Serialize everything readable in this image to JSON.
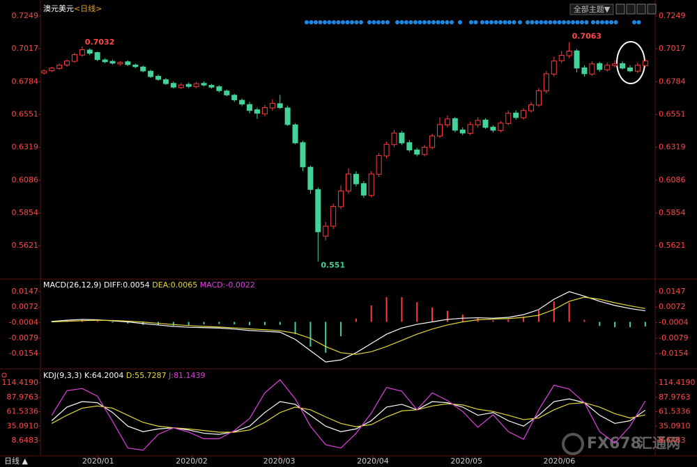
{
  "header": {
    "symbol": "澳元美元",
    "period": "<日线>",
    "theme_button": "全部主题▼"
  },
  "footer": {
    "period_label": "日线 ▲"
  },
  "watermark": {
    "brand": "FX678",
    "brand_cn": "汇通网"
  },
  "chart_data": [
    {
      "type": "candlestick",
      "xlim": [
        -0.3,
        80.3
      ],
      "ylim": [
        0.54,
        0.7323
      ],
      "yticks": [
        0.5621,
        0.5854,
        0.6086,
        0.6319,
        0.6551,
        0.6784,
        0.7017,
        0.7249
      ],
      "xticks": [
        {
          "value": 7.1,
          "label": "2020/01"
        },
        {
          "value": 19.4,
          "label": "2020/02"
        },
        {
          "value": 30.9,
          "label": "2020/03"
        },
        {
          "value": 43.2,
          "label": "2020/04"
        },
        {
          "value": 55.5,
          "label": "2020/05"
        },
        {
          "value": 67.7,
          "label": "2020/06"
        }
      ],
      "up_color": "#ff3c3c",
      "down_color": "#43d39a",
      "grid": false,
      "open": [
        0.6845,
        0.6862,
        0.6878,
        0.6902,
        0.6928,
        0.6972,
        0.7008,
        0.699,
        0.6938,
        0.6928,
        0.691,
        0.6925,
        0.6902,
        0.6888,
        0.6858,
        0.6822,
        0.6798,
        0.6772,
        0.6742,
        0.6765,
        0.6748,
        0.6772,
        0.6758,
        0.6748,
        0.6718,
        0.6688,
        0.6652,
        0.6622,
        0.6585,
        0.6555,
        0.6598,
        0.6628,
        0.6598,
        0.6478,
        0.6352,
        0.6178,
        0.602,
        0.569,
        0.576,
        0.5898,
        0.601,
        0.6128,
        0.6062,
        0.5978,
        0.6128,
        0.6258,
        0.6338,
        0.642,
        0.6352,
        0.63,
        0.6268,
        0.6318,
        0.6398,
        0.6478,
        0.6522,
        0.6442,
        0.6418,
        0.6478,
        0.6512,
        0.6462,
        0.6438,
        0.6488,
        0.6562,
        0.6528,
        0.6578,
        0.6618,
        0.6718,
        0.6838,
        0.6932,
        0.6968,
        0.7002,
        0.6882,
        0.6838,
        0.6912,
        0.6868,
        0.6898,
        0.6912,
        0.6882,
        0.6858,
        0.6898
      ],
      "high": [
        0.687,
        0.689,
        0.6912,
        0.6942,
        0.699,
        0.7032,
        0.702,
        0.6998,
        0.695,
        0.694,
        0.693,
        0.6935,
        0.6912,
        0.6898,
        0.6868,
        0.6835,
        0.681,
        0.6785,
        0.6775,
        0.6778,
        0.6782,
        0.6785,
        0.6768,
        0.6758,
        0.6728,
        0.6698,
        0.6665,
        0.664,
        0.66,
        0.6618,
        0.666,
        0.669,
        0.6615,
        0.649,
        0.6365,
        0.619,
        0.6035,
        0.579,
        0.592,
        0.605,
        0.617,
        0.615,
        0.608,
        0.615,
        0.628,
        0.636,
        0.644,
        0.6435,
        0.637,
        0.6315,
        0.6335,
        0.6415,
        0.653,
        0.6545,
        0.6535,
        0.646,
        0.65,
        0.653,
        0.6525,
        0.6475,
        0.6505,
        0.658,
        0.658,
        0.6595,
        0.664,
        0.674,
        0.686,
        0.696,
        0.7,
        0.7063,
        0.7015,
        0.69,
        0.693,
        0.6925,
        0.692,
        0.6935,
        0.693,
        0.69,
        0.6918,
        0.6945
      ],
      "low": [
        0.6835,
        0.6852,
        0.6868,
        0.689,
        0.6918,
        0.696,
        0.6972,
        0.6928,
        0.6915,
        0.6905,
        0.6898,
        0.6895,
        0.688,
        0.685,
        0.681,
        0.679,
        0.676,
        0.6735,
        0.6732,
        0.6738,
        0.6738,
        0.675,
        0.6735,
        0.6708,
        0.668,
        0.664,
        0.661,
        0.656,
        0.652,
        0.654,
        0.658,
        0.659,
        0.647,
        0.634,
        0.615,
        0.599,
        0.551,
        0.566,
        0.574,
        0.588,
        0.599,
        0.604,
        0.596,
        0.5965,
        0.611,
        0.624,
        0.632,
        0.6335,
        0.6285,
        0.6255,
        0.6255,
        0.6305,
        0.6385,
        0.646,
        0.6425,
        0.6405,
        0.6405,
        0.646,
        0.645,
        0.6425,
        0.6425,
        0.6475,
        0.6515,
        0.6515,
        0.6565,
        0.6605,
        0.67,
        0.682,
        0.6915,
        0.695,
        0.685,
        0.682,
        0.6825,
        0.6855,
        0.6855,
        0.6885,
        0.687,
        0.685,
        0.6845,
        0.6885
      ],
      "close": [
        0.686,
        0.688,
        0.69,
        0.693,
        0.6975,
        0.701,
        0.6985,
        0.694,
        0.6925,
        0.6915,
        0.692,
        0.6905,
        0.689,
        0.686,
        0.682,
        0.68,
        0.677,
        0.6745,
        0.676,
        0.675,
        0.677,
        0.676,
        0.6745,
        0.672,
        0.669,
        0.6655,
        0.6625,
        0.658,
        0.656,
        0.66,
        0.663,
        0.66,
        0.648,
        0.635,
        0.618,
        0.602,
        0.572,
        0.576,
        0.59,
        0.601,
        0.613,
        0.606,
        0.598,
        0.613,
        0.626,
        0.634,
        0.642,
        0.635,
        0.63,
        0.627,
        0.632,
        0.64,
        0.648,
        0.652,
        0.644,
        0.642,
        0.648,
        0.651,
        0.646,
        0.644,
        0.649,
        0.656,
        0.653,
        0.658,
        0.662,
        0.672,
        0.684,
        0.693,
        0.697,
        0.7,
        0.688,
        0.684,
        0.691,
        0.687,
        0.69,
        0.691,
        0.688,
        0.686,
        0.69,
        0.693
      ]
    },
    {
      "type": "macd",
      "label": "MACD(26,12,9)",
      "xlim": [
        -0.3,
        80.3
      ],
      "ylim": [
        -0.0215,
        0.0198
      ],
      "yticks": [
        -0.0154,
        -0.0079,
        -0.0004,
        0.0072,
        0.0147
      ],
      "x": [
        1,
        3,
        5,
        7,
        9,
        11,
        13,
        15,
        17,
        19,
        21,
        23,
        25,
        27,
        29,
        31,
        33,
        35,
        37,
        39,
        41,
        43,
        45,
        47,
        49,
        51,
        53,
        55,
        57,
        59,
        61,
        63,
        65,
        67,
        69,
        71,
        73,
        75,
        77,
        79
      ],
      "series": [
        {
          "name": "DIFF:",
          "color": "#ffffff",
          "values": [
            0.0002,
            0.0008,
            0.0012,
            0.001,
            0.0005,
            0.0,
            -0.0008,
            -0.0015,
            -0.0022,
            -0.0026,
            -0.0028,
            -0.003,
            -0.0035,
            -0.0042,
            -0.0046,
            -0.005,
            -0.0085,
            -0.014,
            -0.0195,
            -0.0185,
            -0.015,
            -0.0105,
            -0.006,
            -0.003,
            -0.0012,
            0.0,
            0.0012,
            0.0018,
            0.002,
            0.0018,
            0.0022,
            0.0035,
            0.006,
            0.011,
            0.0147,
            0.0125,
            0.01,
            0.008,
            0.0065,
            0.0054
          ]
        },
        {
          "name": "DEA:",
          "color": "#e6d93a",
          "values": [
            0.0,
            0.0003,
            0.0006,
            0.0008,
            0.0007,
            0.0004,
            -0.0001,
            -0.0007,
            -0.0013,
            -0.0018,
            -0.0022,
            -0.0025,
            -0.0029,
            -0.0034,
            -0.0038,
            -0.0043,
            -0.0055,
            -0.008,
            -0.012,
            -0.015,
            -0.0158,
            -0.0145,
            -0.012,
            -0.009,
            -0.006,
            -0.0035,
            -0.0015,
            0.0,
            0.001,
            0.0014,
            0.0016,
            0.0022,
            0.0032,
            0.006,
            0.01,
            0.012,
            0.011,
            0.0093,
            0.0078,
            0.0065
          ]
        },
        {
          "name": "MACD:",
          "color": "#e040e0",
          "up_color": "#ff3c3c",
          "down_color": "#43d39a",
          "values": [
            0.0004,
            0.001,
            0.0012,
            0.0004,
            -0.0004,
            -0.0008,
            -0.0014,
            -0.0016,
            -0.0018,
            -0.0016,
            -0.0012,
            -0.001,
            -0.0012,
            -0.0016,
            -0.0016,
            -0.0014,
            -0.006,
            -0.012,
            -0.015,
            -0.007,
            0.0016,
            0.008,
            0.012,
            0.012,
            0.0096,
            0.007,
            0.0054,
            0.0036,
            0.002,
            0.0008,
            0.0012,
            0.0026,
            0.0056,
            0.01,
            0.0094,
            0.001,
            -0.002,
            -0.0026,
            -0.0026,
            -0.0022
          ]
        }
      ]
    },
    {
      "type": "kdj",
      "label": "KDJ(9,3,3)",
      "xlim": [
        -0.3,
        80.3
      ],
      "ylim": [
        -16.8,
        132.3
      ],
      "yticks": [
        {
          "value": 8.6483,
          "label": "8.6483"
        },
        {
          "value": 35.091,
          "label": "35.0910"
        },
        {
          "value": 61.5336,
          "label": "61.5336"
        },
        {
          "value": 87.9763,
          "label": "87.9763"
        },
        {
          "value": 114.419,
          "label": "114.4190"
        }
      ],
      "x": [
        1,
        3,
        5,
        7,
        9,
        11,
        13,
        15,
        17,
        19,
        21,
        23,
        25,
        27,
        29,
        31,
        33,
        35,
        37,
        39,
        41,
        43,
        45,
        47,
        49,
        51,
        53,
        55,
        57,
        59,
        61,
        63,
        65,
        67,
        69,
        71,
        73,
        75,
        77,
        79
      ],
      "series": [
        {
          "name": "K:",
          "color": "#ffffff",
          "values": [
            45,
            70,
            80,
            78,
            60,
            35,
            25,
            30,
            32,
            28,
            22,
            20,
            25,
            35,
            60,
            80,
            75,
            55,
            35,
            25,
            30,
            45,
            70,
            75,
            65,
            80,
            78,
            70,
            55,
            60,
            45,
            35,
            55,
            80,
            85,
            78,
            55,
            40,
            45,
            64.2004
          ]
        },
        {
          "name": "D:",
          "color": "#e6d93a",
          "values": [
            40,
            55,
            68,
            72,
            68,
            55,
            42,
            35,
            32,
            30,
            27,
            24,
            24,
            28,
            42,
            60,
            70,
            65,
            52,
            40,
            34,
            38,
            52,
            63,
            65,
            72,
            76,
            74,
            66,
            62,
            55,
            47,
            50,
            65,
            76,
            78,
            70,
            58,
            50,
            55.7287
          ]
        },
        {
          "name": "J:",
          "color": "#e040e0",
          "values": [
            55,
            100,
            104,
            90,
            44,
            -5,
            -9,
            20,
            32,
            24,
            12,
            12,
            27,
            49,
            96,
            120,
            85,
            35,
            1,
            -5,
            22,
            59,
            106,
            99,
            65,
            96,
            82,
            62,
            33,
            56,
            25,
            11,
            65,
            110,
            103,
            78,
            25,
            4,
            35,
            81.1439
          ]
        }
      ]
    }
  ]
}
